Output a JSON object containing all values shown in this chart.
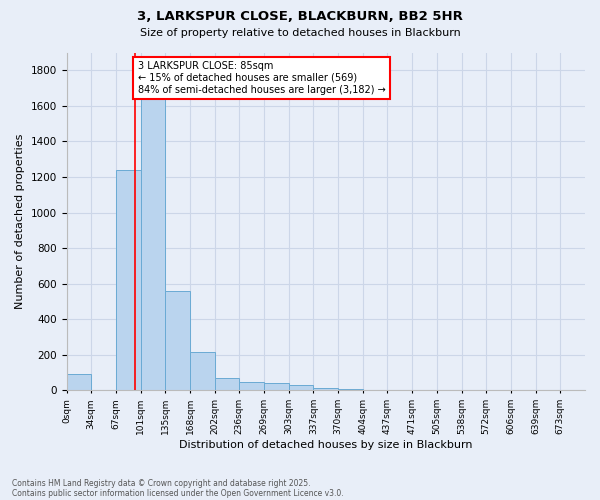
{
  "title_line1": "3, LARKSPUR CLOSE, BLACKBURN, BB2 5HR",
  "title_line2": "Size of property relative to detached houses in Blackburn",
  "xlabel": "Distribution of detached houses by size in Blackburn",
  "ylabel": "Number of detached properties",
  "categories": [
    "0sqm",
    "34sqm",
    "67sqm",
    "101sqm",
    "135sqm",
    "168sqm",
    "202sqm",
    "236sqm",
    "269sqm",
    "303sqm",
    "337sqm",
    "370sqm",
    "404sqm",
    "437sqm",
    "471sqm",
    "505sqm",
    "538sqm",
    "572sqm",
    "606sqm",
    "639sqm",
    "673sqm"
  ],
  "values": [
    95,
    0,
    1240,
    1660,
    560,
    215,
    70,
    48,
    40,
    28,
    14,
    6,
    3,
    2,
    0,
    0,
    0,
    0,
    0,
    0,
    0
  ],
  "bar_color": "#bad4ee",
  "bar_edge_color": "#6aaad4",
  "property_line_x": 2.78,
  "annotation_line1": "3 LARKSPUR CLOSE: 85sqm",
  "annotation_line2": "← 15% of detached houses are smaller (569)",
  "annotation_line3": "84% of semi-detached houses are larger (3,182) →",
  "annotation_box_color": "white",
  "annotation_box_edge": "red",
  "red_line_color": "red",
  "ylim": [
    0,
    1900
  ],
  "yticks": [
    0,
    200,
    400,
    600,
    800,
    1000,
    1200,
    1400,
    1600,
    1800
  ],
  "grid_color": "#ccd6e8",
  "bg_color": "#e8eef8",
  "footnote1": "Contains HM Land Registry data © Crown copyright and database right 2025.",
  "footnote2": "Contains public sector information licensed under the Open Government Licence v3.0."
}
